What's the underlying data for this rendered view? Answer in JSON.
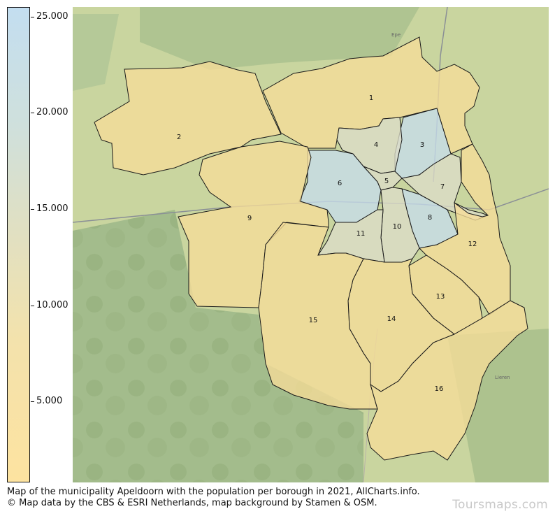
{
  "colorbar": {
    "ticks": [
      {
        "label": "25.000",
        "value": 25000
      },
      {
        "label": "20.000",
        "value": 20000
      },
      {
        "label": "15.000",
        "value": 15000
      },
      {
        "label": "10.000",
        "value": 10000
      },
      {
        "label": "5.000",
        "value": 5000
      }
    ],
    "min": 800,
    "max": 25500,
    "low_color": "#fde3a0",
    "high_color": "#c3def0"
  },
  "map": {
    "boroughs": [
      {
        "id": "1",
        "label": "1",
        "level": "low"
      },
      {
        "id": "2",
        "label": "2",
        "level": "low"
      },
      {
        "id": "3",
        "label": "3",
        "level": "high"
      },
      {
        "id": "4",
        "label": "4",
        "level": "mid"
      },
      {
        "id": "5",
        "label": "5",
        "level": "mid"
      },
      {
        "id": "6",
        "label": "6",
        "level": "high"
      },
      {
        "id": "7",
        "label": "7",
        "level": "mid"
      },
      {
        "id": "8",
        "label": "8",
        "level": "high"
      },
      {
        "id": "9",
        "label": "9",
        "level": "low"
      },
      {
        "id": "10",
        "label": "10",
        "level": "mid"
      },
      {
        "id": "11",
        "label": "11",
        "level": "mid"
      },
      {
        "id": "12",
        "label": "12",
        "level": "low"
      },
      {
        "id": "13",
        "label": "13",
        "level": "low"
      },
      {
        "id": "14",
        "label": "14",
        "level": "low"
      },
      {
        "id": "15",
        "label": "15",
        "level": "low"
      },
      {
        "id": "16",
        "label": "16",
        "level": "low"
      }
    ],
    "place_labels": [
      "Epe",
      "Lieren"
    ]
  },
  "caption": {
    "line1": "Map of the municipality Apeldoorn with the population per borough in 2021, AllCharts.info.",
    "line2": "© Map data by the CBS & ESRI Netherlands, map background by Stamen & OSM."
  },
  "watermark": "Toursmaps.com"
}
